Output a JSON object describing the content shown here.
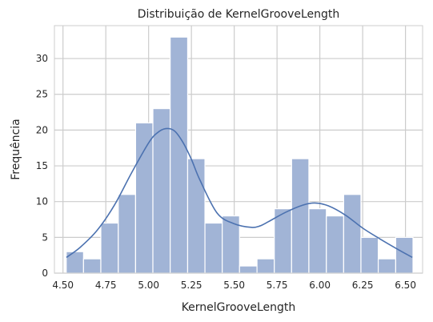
{
  "chart_data": {
    "type": "bar",
    "subtype": "histogram-with-kde",
    "title": "Distribuição de KernelGrooveLength",
    "xlabel": "KernelGrooveLength",
    "ylabel": "Frequência",
    "xlim": [
      4.45,
      6.6
    ],
    "ylim": [
      0,
      34.6
    ],
    "xticks": [
      4.5,
      4.75,
      5.0,
      5.25,
      5.5,
      5.75,
      6.0,
      6.25,
      6.5
    ],
    "xtick_labels": [
      "4.50",
      "4.75",
      "5.00",
      "5.25",
      "5.50",
      "5.75",
      "6.00",
      "6.25",
      "6.50"
    ],
    "yticks": [
      0,
      5,
      10,
      15,
      20,
      25,
      30
    ],
    "ytick_labels": [
      "0",
      "5",
      "10",
      "15",
      "20",
      "25",
      "30"
    ],
    "grid": true,
    "bar_color": "#a1b4d6",
    "bar_edge_color": "#ffffff",
    "line_color": "#4c72b0",
    "bins": [
      {
        "x0": 4.519,
        "x1": 4.62,
        "count": 3
      },
      {
        "x0": 4.62,
        "x1": 4.721,
        "count": 2
      },
      {
        "x0": 4.721,
        "x1": 4.823,
        "count": 7
      },
      {
        "x0": 4.823,
        "x1": 4.924,
        "count": 11
      },
      {
        "x0": 4.924,
        "x1": 5.025,
        "count": 21
      },
      {
        "x0": 5.025,
        "x1": 5.126,
        "count": 23
      },
      {
        "x0": 5.126,
        "x1": 5.228,
        "count": 33
      },
      {
        "x0": 5.228,
        "x1": 5.329,
        "count": 16
      },
      {
        "x0": 5.329,
        "x1": 5.43,
        "count": 7
      },
      {
        "x0": 5.43,
        "x1": 5.531,
        "count": 8
      },
      {
        "x0": 5.531,
        "x1": 5.633,
        "count": 1
      },
      {
        "x0": 5.633,
        "x1": 5.734,
        "count": 2
      },
      {
        "x0": 5.734,
        "x1": 5.835,
        "count": 9
      },
      {
        "x0": 5.835,
        "x1": 5.936,
        "count": 16
      },
      {
        "x0": 5.936,
        "x1": 6.038,
        "count": 9
      },
      {
        "x0": 6.038,
        "x1": 6.139,
        "count": 8
      },
      {
        "x0": 6.139,
        "x1": 6.24,
        "count": 11
      },
      {
        "x0": 6.24,
        "x1": 6.341,
        "count": 5
      },
      {
        "x0": 6.341,
        "x1": 6.443,
        "count": 2
      },
      {
        "x0": 6.443,
        "x1": 6.544,
        "count": 5
      }
    ],
    "kde": {
      "x": [
        4.52,
        4.6,
        4.7,
        4.8,
        4.9,
        5.0,
        5.05,
        5.1,
        5.15,
        5.2,
        5.25,
        5.3,
        5.4,
        5.5,
        5.6,
        5.65,
        5.7,
        5.8,
        5.9,
        5.97,
        6.05,
        6.15,
        6.25,
        6.35,
        6.45,
        6.54
      ],
      "y": [
        2.2,
        3.6,
        6.0,
        9.5,
        14.0,
        18.2,
        19.6,
        20.2,
        19.9,
        18.3,
        15.9,
        13.0,
        8.4,
        6.9,
        6.4,
        6.6,
        7.2,
        8.5,
        9.5,
        9.8,
        9.4,
        8.1,
        6.3,
        4.8,
        3.4,
        2.2
      ]
    }
  }
}
